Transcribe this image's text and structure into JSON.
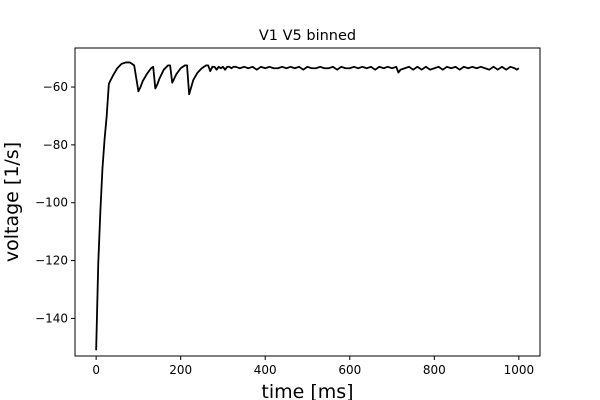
{
  "chart_data": {
    "type": "line",
    "title": "V1 V5 binned",
    "xlabel": "time [ms]",
    "ylabel": "voltage [1/s]",
    "xlim": [
      -50,
      1050
    ],
    "ylim": [
      -153,
      -46.5
    ],
    "x_ticks": [
      0,
      200,
      400,
      600,
      800,
      1000
    ],
    "x_tick_labels": [
      "0",
      "200",
      "400",
      "600",
      "800",
      "1000"
    ],
    "y_ticks": [
      -60,
      -80,
      -100,
      -120,
      -140
    ],
    "y_tick_labels": [
      "−60",
      "−80",
      "−100",
      "−120",
      "−140"
    ],
    "grid": false,
    "legend": false,
    "line_color": "#000000",
    "series": [
      {
        "x": [
          0,
          5,
          10,
          15,
          20,
          25,
          30,
          33,
          40,
          50,
          60,
          70,
          80,
          90,
          95,
          100,
          105,
          110,
          120,
          130,
          135,
          140,
          145,
          150,
          160,
          170,
          175,
          180,
          185,
          190,
          200,
          210,
          215,
          220,
          225,
          230,
          240,
          250,
          260,
          265,
          270,
          275,
          280,
          285,
          290,
          295,
          300,
          305,
          310,
          315,
          320,
          325,
          330,
          340,
          350,
          360,
          370,
          380,
          390,
          400,
          410,
          420,
          430,
          440,
          450,
          460,
          470,
          480,
          490,
          500,
          510,
          520,
          530,
          540,
          550,
          560,
          570,
          580,
          590,
          600,
          610,
          620,
          630,
          640,
          650,
          660,
          670,
          680,
          690,
          700,
          710,
          715,
          720,
          730,
          740,
          750,
          760,
          770,
          780,
          790,
          800,
          810,
          820,
          830,
          840,
          850,
          860,
          870,
          880,
          890,
          900,
          910,
          920,
          930,
          940,
          950,
          960,
          970,
          980,
          990,
          995,
          1000
        ],
        "y": [
          -151,
          -121,
          -103,
          -88,
          -78,
          -70,
          -59,
          -58,
          -56,
          -53.5,
          -52,
          -51.5,
          -51.5,
          -52.5,
          -57,
          -61.5,
          -60,
          -58,
          -55.5,
          -53.5,
          -53,
          -60.5,
          -59,
          -57,
          -54,
          -52.5,
          -52.5,
          -58.5,
          -57,
          -55.5,
          -53.5,
          -52.5,
          -52.5,
          -62.5,
          -60,
          -57.5,
          -55,
          -53.5,
          -52.5,
          -52.5,
          -54.5,
          -53,
          -53,
          -54,
          -53,
          -53.5,
          -53,
          -54,
          -53,
          -53,
          -53.5,
          -53,
          -53,
          -53.5,
          -53,
          -53.5,
          -53,
          -54,
          -53,
          -53.5,
          -53,
          -53.5,
          -53.5,
          -53,
          -53.5,
          -53,
          -53.5,
          -53,
          -54,
          -53,
          -53.5,
          -53.5,
          -53,
          -53.5,
          -53.5,
          -53,
          -54,
          -53,
          -53.5,
          -53.5,
          -53,
          -53.5,
          -53,
          -53.5,
          -53,
          -54,
          -53,
          -53.5,
          -53,
          -53.5,
          -53,
          -55,
          -54,
          -53.5,
          -53,
          -54,
          -53,
          -54,
          -53,
          -54,
          -53.5,
          -53,
          -54,
          -53,
          -53.5,
          -53,
          -54,
          -53,
          -53.5,
          -53,
          -53.5,
          -53,
          -53.5,
          -54,
          -53,
          -54,
          -53,
          -54,
          -53,
          -53.5,
          -54,
          -53.5
        ]
      }
    ]
  }
}
